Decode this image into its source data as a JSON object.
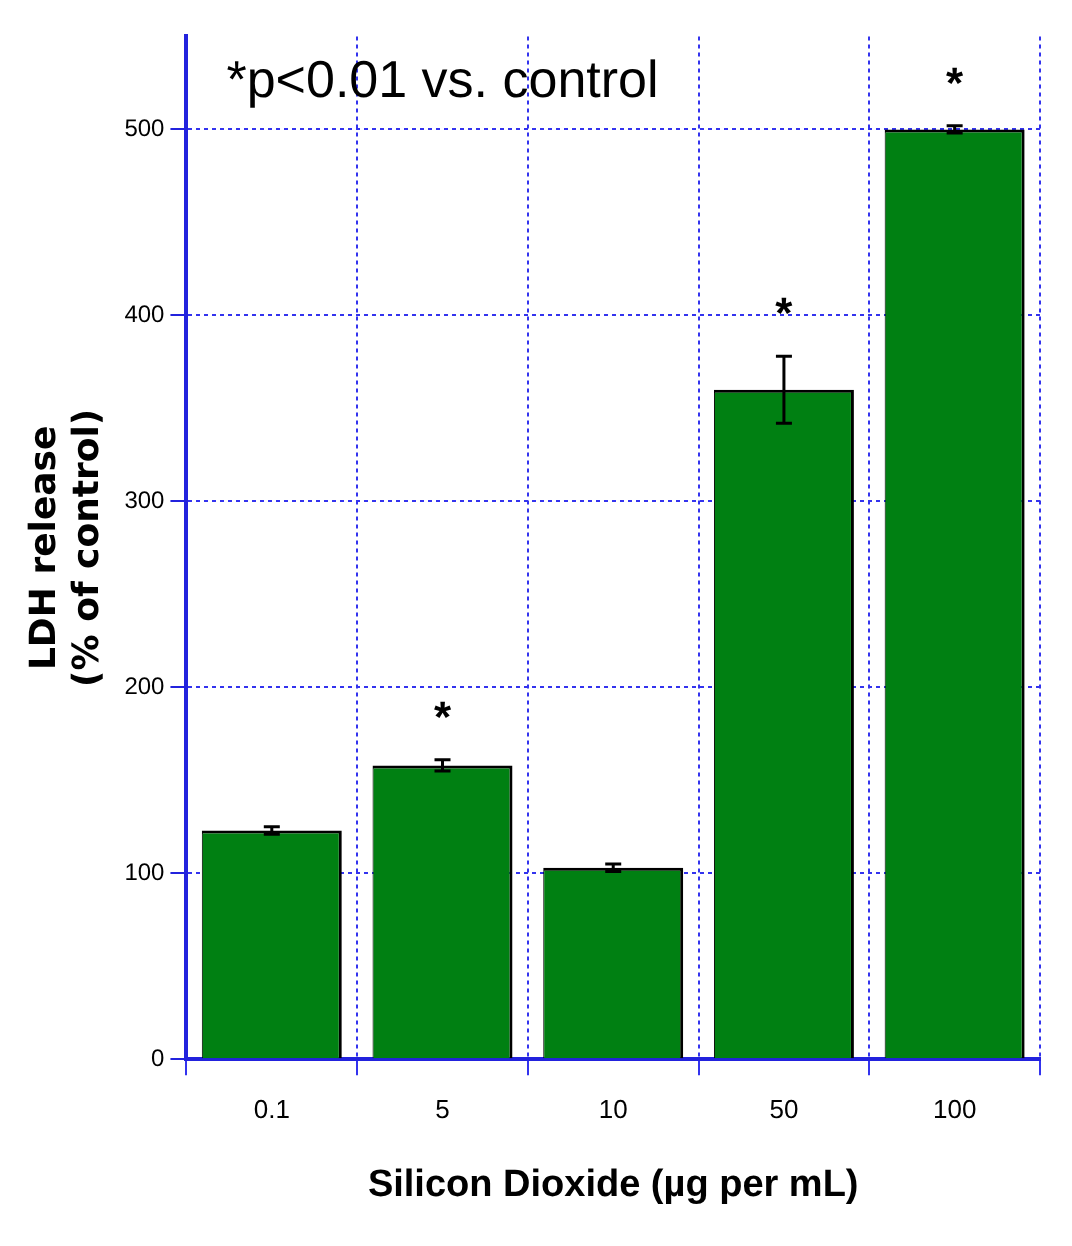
{
  "chart_data": {
    "type": "bar",
    "xlabel": "Silicon Dioxide (µg per mL)",
    "ylabel": "LDH release\n(% of control)",
    "categories": [
      "0.1",
      "5",
      "10",
      "50",
      "100"
    ],
    "values": [
      123,
      158,
      103,
      360,
      500
    ],
    "errors": [
      2,
      3,
      2,
      18,
      2
    ],
    "color": "#008012",
    "ylim": [
      0,
      550
    ],
    "yticks": [
      0,
      100,
      200,
      300,
      400,
      500
    ],
    "grid": true,
    "annotations": [
      "*p<0.01 vs. control",
      {
        "text": "*",
        "x": "5",
        "y": 158
      },
      {
        "text": "*",
        "x": "50",
        "y": 360
      },
      {
        "text": "*",
        "x": "100",
        "y": 500
      }
    ]
  }
}
